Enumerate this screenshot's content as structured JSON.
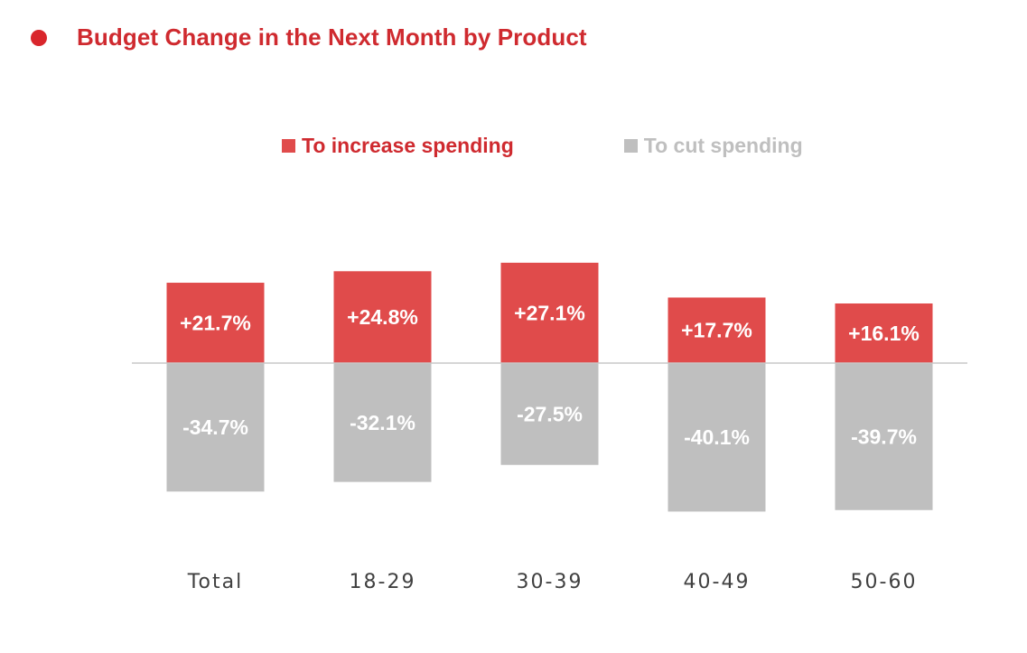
{
  "title": "Budget Change in the Next Month by Product",
  "colors": {
    "accent": "#d9262c",
    "title": "#cf2a2f",
    "increase": "#e04b4b",
    "cut": "#bfbfbf",
    "legend_cut_text": "#bfbfbf",
    "axis": "#c8c8c8"
  },
  "chart_data": {
    "type": "bar",
    "title": "Budget Change in the Next Month by Product",
    "xlabel": "",
    "ylabel": "",
    "categories": [
      "Total",
      "18-29",
      "30-39",
      "40-49",
      "50-60"
    ],
    "series": [
      {
        "name": "To increase spending",
        "values": [
          21.7,
          24.8,
          27.1,
          17.7,
          16.1
        ],
        "labels": [
          "+21.7%",
          "+24.8%",
          "+27.1%",
          "+17.7%",
          "+16.1%"
        ]
      },
      {
        "name": "To cut spending",
        "values": [
          -34.7,
          -32.1,
          -27.5,
          -40.1,
          -39.7
        ],
        "labels": [
          "-34.7%",
          "-32.1%",
          "-27.5%",
          "-40.1%",
          "-39.7%"
        ]
      }
    ],
    "ylim": [
      -45,
      30
    ],
    "legend_position": "top-center",
    "grid": false
  }
}
